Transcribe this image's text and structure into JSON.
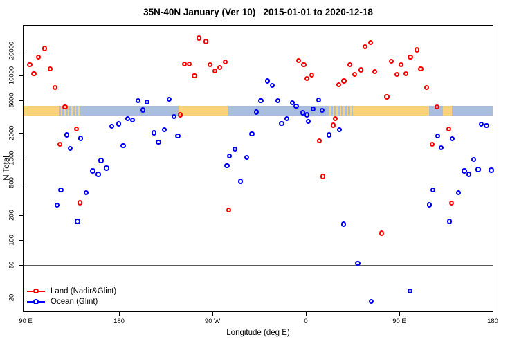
{
  "chart_data": {
    "type": "scatter",
    "title": "35N-40N January (Ver 10)   2015-01-01 to 2020-12-18",
    "xlabel": "Longitude (deg E)",
    "ylabel": "N Total",
    "grid": false,
    "x_axis": {
      "range_deg_e": [
        87.3,
        540.7
      ],
      "ticks": [
        {
          "lon": 90,
          "label": "90 E"
        },
        {
          "lon": 180,
          "label": "180"
        },
        {
          "lon": 270,
          "label": "90 W"
        },
        {
          "lon": 360,
          "label": "0"
        },
        {
          "lon": 450,
          "label": "90 E"
        },
        {
          "lon": 540,
          "label": "180"
        }
      ]
    },
    "y_axis": {
      "scale": "log",
      "range": [
        13,
        41000
      ],
      "ticks": [
        20000,
        10000,
        5000,
        2000,
        1000,
        500,
        200,
        100,
        50,
        20
      ]
    },
    "reference_line": {
      "n": 50,
      "color": "#5a5a5a"
    },
    "surface_band": {
      "n_top": 4280,
      "n_bottom": 3220,
      "land_color": "#FAD279",
      "ocean_color": "#A9BEDC",
      "segments": [
        {
          "type": "land",
          "from": 87.3,
          "to": 120.7
        },
        {
          "type": "mixed",
          "from": 120.7,
          "to": 142.0
        },
        {
          "type": "ocean",
          "from": 142.0,
          "to": 237.3
        },
        {
          "type": "land",
          "from": 237.3,
          "to": 285.3
        },
        {
          "type": "ocean",
          "from": 285.3,
          "to": 382.7
        },
        {
          "type": "mixed",
          "from": 382.7,
          "to": 405.3
        },
        {
          "type": "land",
          "from": 405.3,
          "to": 478.7
        },
        {
          "type": "ocean",
          "from": 478.7,
          "to": 492.0
        },
        {
          "type": "land",
          "from": 492.0,
          "to": 500.7
        },
        {
          "type": "ocean",
          "from": 500.7,
          "to": 540.7
        }
      ]
    },
    "legend": {
      "position": "bottom-left"
    },
    "series": [
      {
        "name": "Land (Nadir&Glint)",
        "color": "#FF0000",
        "points": [
          [
            108.5,
            21100
          ],
          [
            102.5,
            16600
          ],
          [
            94,
            13500
          ],
          [
            98,
            10400
          ],
          [
            113.5,
            12000
          ],
          [
            118.5,
            7100
          ],
          [
            128,
            4150
          ],
          [
            139.1,
            2220
          ],
          [
            122.9,
            1450
          ],
          [
            142.5,
            282
          ],
          [
            257.3,
            28300
          ],
          [
            263.5,
            25600
          ],
          [
            242.9,
            13700
          ],
          [
            247.8,
            13700
          ],
          [
            252.7,
            9900
          ],
          [
            267.8,
            13500
          ],
          [
            272.5,
            11300
          ],
          [
            277.3,
            12400
          ],
          [
            282.2,
            14600
          ],
          [
            239.1,
            3300
          ],
          [
            285.8,
            232
          ],
          [
            352.9,
            15000
          ],
          [
            358,
            13500
          ],
          [
            361.1,
            9170
          ],
          [
            365.5,
            10000
          ],
          [
            372.9,
            1600
          ],
          [
            376.2,
            590
          ],
          [
            386.2,
            2470
          ],
          [
            388.5,
            2950
          ],
          [
            391.8,
            7650
          ],
          [
            396.7,
            8540
          ],
          [
            402.5,
            13500
          ],
          [
            407.3,
            10200
          ],
          [
            412.9,
            11600
          ],
          [
            416.9,
            22200
          ],
          [
            422.5,
            24800
          ],
          [
            426.2,
            11000
          ],
          [
            432.9,
            121
          ],
          [
            438,
            5470
          ],
          [
            442.5,
            14800
          ],
          [
            447.5,
            10200
          ],
          [
            451.8,
            13500
          ],
          [
            456.2,
            10400
          ],
          [
            460.7,
            16600
          ],
          [
            466.9,
            20400
          ],
          [
            470.7,
            12000
          ],
          [
            476.2,
            7080
          ],
          [
            481.8,
            1450
          ],
          [
            486.2,
            4150
          ],
          [
            497.8,
            2230
          ],
          [
            500.2,
            279
          ]
        ]
      },
      {
        "name": "Ocean (Glint)",
        "color": "#0000FF",
        "points": [
          [
            120.2,
            264
          ],
          [
            124,
            407
          ],
          [
            129.5,
            1880
          ],
          [
            132.9,
            1300
          ],
          [
            140,
            168
          ],
          [
            142.9,
            1710
          ],
          [
            148.5,
            376
          ],
          [
            154.7,
            690
          ],
          [
            160,
            626
          ],
          [
            162.7,
            920
          ],
          [
            168,
            745
          ],
          [
            172.9,
            2390
          ],
          [
            179.5,
            2560
          ],
          [
            184,
            1390
          ],
          [
            188.5,
            2950
          ],
          [
            192.9,
            2870
          ],
          [
            198.5,
            4940
          ],
          [
            202.9,
            3770
          ],
          [
            207.3,
            4710
          ],
          [
            213.5,
            2000
          ],
          [
            218,
            1530
          ],
          [
            223.5,
            2170
          ],
          [
            228.5,
            5130
          ],
          [
            232.9,
            3140
          ],
          [
            236.7,
            1830
          ],
          [
            284,
            800
          ],
          [
            286.2,
            1050
          ],
          [
            291.8,
            1270
          ],
          [
            297.3,
            516
          ],
          [
            302.9,
            1000
          ],
          [
            308,
            1940
          ],
          [
            312.5,
            3570
          ],
          [
            316.7,
            4940
          ],
          [
            322.9,
            8540
          ],
          [
            327.8,
            7560
          ],
          [
            332.9,
            4940
          ],
          [
            336.7,
            2590
          ],
          [
            341.8,
            2950
          ],
          [
            347.3,
            4620
          ],
          [
            350.7,
            4230
          ],
          [
            357.3,
            3490
          ],
          [
            361.1,
            3310
          ],
          [
            362.5,
            2730
          ],
          [
            367.3,
            3890
          ],
          [
            372.2,
            5030
          ],
          [
            375.8,
            3720
          ],
          [
            382.5,
            1880
          ],
          [
            392.2,
            2170
          ],
          [
            396.2,
            155
          ],
          [
            410,
            52
          ],
          [
            423.3,
            18
          ],
          [
            460.2,
            24
          ],
          [
            478.9,
            267
          ],
          [
            482.2,
            407
          ],
          [
            487.3,
            1840
          ],
          [
            490.2,
            1310
          ],
          [
            498.5,
            168
          ],
          [
            501.1,
            1700
          ],
          [
            506.9,
            374
          ],
          [
            512.7,
            690
          ],
          [
            517.3,
            626
          ],
          [
            521.8,
            946
          ],
          [
            526,
            717
          ],
          [
            529.1,
            2540
          ],
          [
            534,
            2430
          ],
          [
            538.7,
            703
          ]
        ]
      }
    ]
  }
}
